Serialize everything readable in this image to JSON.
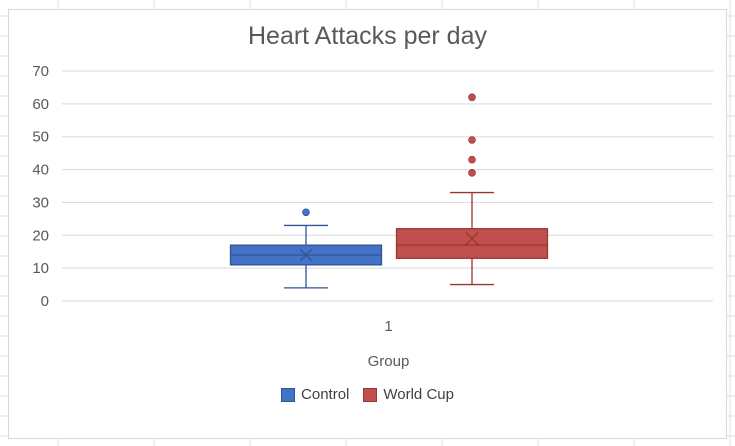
{
  "chart_data": {
    "type": "box",
    "title": "Heart Attacks per day",
    "xlabel": "Group",
    "ylabel": "",
    "categories": [
      "1"
    ],
    "ylim": [
      0,
      70
    ],
    "yticks": [
      0,
      10,
      20,
      30,
      40,
      50,
      60,
      70
    ],
    "grid": true,
    "legend_position": "bottom",
    "series": [
      {
        "name": "Control",
        "color": "#4472C4",
        "edge": "#2F5597",
        "min": 4,
        "q1": 11,
        "median": 14,
        "q3": 17,
        "max": 23,
        "mean": 14,
        "outliers": [
          27
        ]
      },
      {
        "name": "World Cup",
        "color": "#C0504D",
        "edge": "#9C3431",
        "min": 5,
        "q1": 13,
        "median": 17,
        "q3": 22,
        "max": 33,
        "mean": 19,
        "outliers": [
          39,
          43,
          49,
          62
        ]
      }
    ]
  }
}
